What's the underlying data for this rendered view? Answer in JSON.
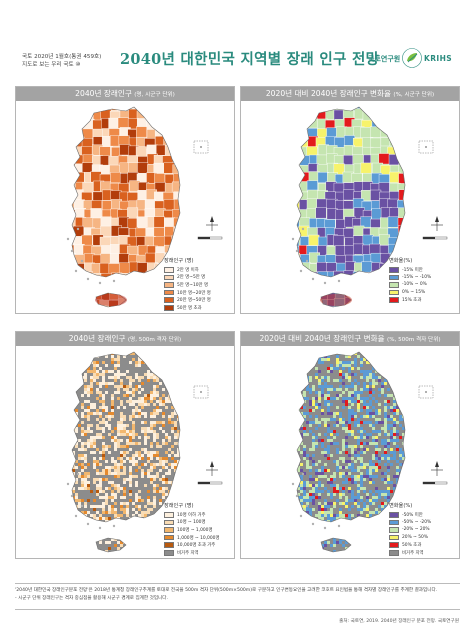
{
  "header": {
    "issue_line": "국토 2020년 1월호(통권 459호)",
    "series_line": "지도로 보는 우리 국토 ⑩",
    "title": "2040년 대한민국 지역별 장래 인구 전망",
    "org_name": "국토연구원",
    "org_name_en": "KRIHS",
    "logo_icon": "krihs-leaf-logo-icon"
  },
  "panels": [
    {
      "title": "2040년 장래인구",
      "subtitle": "(명, 시군구 단위)",
      "legend_title": "장래인구 (명)",
      "legend": [
        {
          "label": "2만 명 이하",
          "color": "#fef0e4"
        },
        {
          "label": "2만 명~5만 명",
          "color": "#fbd7b8"
        },
        {
          "label": "5만 명~10만 명",
          "color": "#f6b583"
        },
        {
          "label": "10만 명~20만 명",
          "color": "#ee8a49"
        },
        {
          "label": "20만 명~50만 명",
          "color": "#d9611f"
        },
        {
          "label": "50만 명 초과",
          "color": "#b23d0b"
        }
      ]
    },
    {
      "title": "2020년 대비 2040년 장래인구 변화율",
      "subtitle": "(%, 시군구 단위)",
      "legend_title": "변화율(%)",
      "legend": [
        {
          "label": "-15% 미만",
          "color": "#6a51a3"
        },
        {
          "label": "-15% ~ -10%",
          "color": "#5b9bd5"
        },
        {
          "label": "-10% ~ 0%",
          "color": "#c5e5b0"
        },
        {
          "label": "0% ~ 15%",
          "color": "#f7f36b"
        },
        {
          "label": "15% 초과",
          "color": "#e31a1c"
        }
      ]
    },
    {
      "title": "2040년 장래인구",
      "subtitle": "(명, 500m 격자 단위)",
      "legend_title": "장래인구 (명)",
      "legend": [
        {
          "label": "10명 이하 거주",
          "color": "#fdf0de"
        },
        {
          "label": "10명 ~ 100명",
          "color": "#f9dcb4"
        },
        {
          "label": "100명 ~ 1,000명",
          "color": "#f2b76e"
        },
        {
          "label": "1,000명 ~ 10,000명",
          "color": "#e58a2e"
        },
        {
          "label": "10,000명 초과 거주",
          "color": "#b85a0f"
        },
        {
          "label": "비거주 지역",
          "color": "#8c8c8c"
        }
      ]
    },
    {
      "title": "2020년 대비 2040년 장래인구 변화율",
      "subtitle": "(%, 500m 격자 단위)",
      "legend_title": "변화율(%)",
      "legend": [
        {
          "label": "-50% 미만",
          "color": "#6a51a3"
        },
        {
          "label": "-50% ~ -20%",
          "color": "#5b9bd5"
        },
        {
          "label": "-20% ~ 20%",
          "color": "#c5e5b0"
        },
        {
          "label": "20% ~ 50%",
          "color": "#f7f36b"
        },
        {
          "label": "50% 초과",
          "color": "#e31a1c"
        },
        {
          "label": "비거주 지역",
          "color": "#8c8c8c"
        }
      ]
    }
  ],
  "colors": {
    "accent": "#2a8b7e",
    "panel_header": "#a3a3a3",
    "jeju_highlight": "#c0392b"
  },
  "footnote": {
    "line1": "'2040년 대한민국 장래인구분포 전망'은 2018년 통계청 장래인구추계를 토대로 전국을 500m 격자 단위(500m×500m)로 구분하고 인구변동요인을 고려한 코호트 요인법을 통해 격자별 장래인구를 추계한 결과입니다.",
    "line2": "- 시군구 단위 장래인구는 격자 중심점을 활용해 시군구 경계로 집계한 것입니다."
  },
  "source": "출처: 국토연, 2019. 2040년 장래인구 분포 전망. 국토연구원"
}
